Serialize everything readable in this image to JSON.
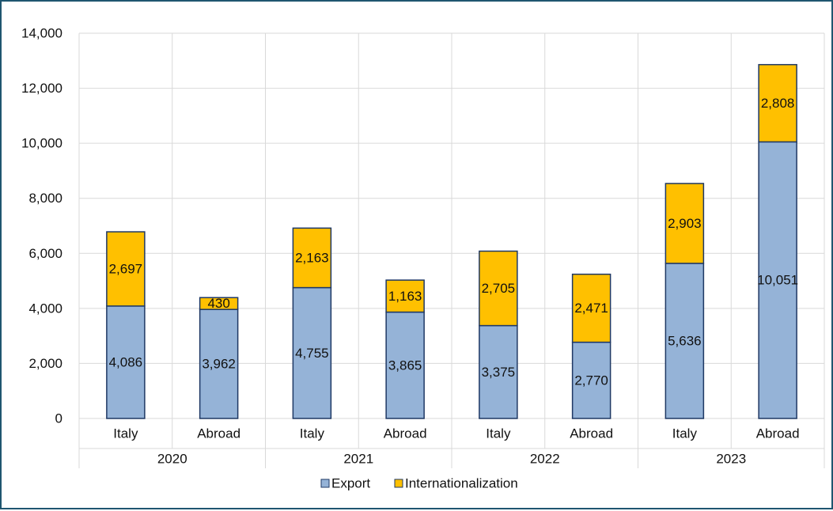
{
  "chart_data": {
    "type": "bar",
    "stacked": true,
    "title": "",
    "xlabel": "",
    "ylabel": "",
    "ylim": [
      0,
      14000
    ],
    "yticks": [
      "0",
      "2,000",
      "4,000",
      "6,000",
      "8,000",
      "10,000",
      "12,000",
      "14,000"
    ],
    "ytick_values": [
      0,
      2000,
      4000,
      6000,
      8000,
      10000,
      12000,
      14000
    ],
    "grid": true,
    "legend_position": "bottom",
    "groups": [
      "2020",
      "2021",
      "2022",
      "2023"
    ],
    "categories": [
      "Italy",
      "Abroad",
      "Italy",
      "Abroad",
      "Italy",
      "Abroad",
      "Italy",
      "Abroad"
    ],
    "series": [
      {
        "name": "Export",
        "color": "#95b3d7",
        "values": [
          4086,
          3962,
          4755,
          3865,
          3375,
          2770,
          5636,
          10051
        ],
        "labels": [
          "4,086",
          "3,962",
          "4,755",
          "3,865",
          "3,375",
          "2,770",
          "5,636",
          "10,051"
        ]
      },
      {
        "name": "Internationalization",
        "color": "#ffc000",
        "values": [
          2697,
          430,
          2163,
          1163,
          2705,
          2471,
          2903,
          2808
        ],
        "labels": [
          "2,697",
          "430",
          "2,163",
          "1,163",
          "2,705",
          "2,471",
          "2,903",
          "2,808"
        ]
      }
    ],
    "bar_outline_color": "#1f3864",
    "grid_color": "#d9d9d9"
  }
}
